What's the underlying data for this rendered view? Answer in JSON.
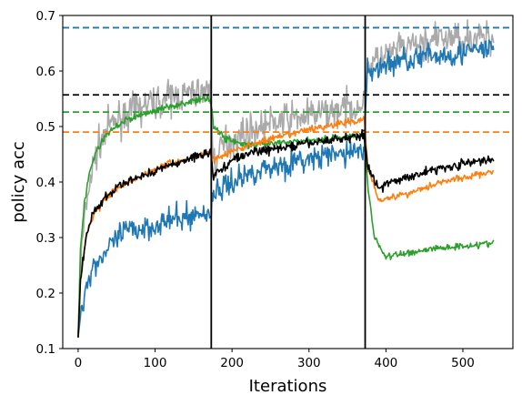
{
  "chart_data": {
    "type": "line",
    "title": "",
    "xlabel": "Iterations",
    "ylabel": "policy acc",
    "xlim": [
      -20,
      565
    ],
    "ylim": [
      0.1,
      0.7
    ],
    "xticks": [
      0,
      100,
      200,
      300,
      400,
      500
    ],
    "yticks": [
      0.1,
      0.2,
      0.3,
      0.4,
      0.5,
      0.6,
      0.7
    ],
    "xtick_labels": [
      "0",
      "100",
      "200",
      "300",
      "400",
      "500"
    ],
    "ytick_labels": [
      "0.1",
      "0.2",
      "0.3",
      "0.4",
      "0.5",
      "0.6",
      "0.7"
    ],
    "grid": false,
    "vertical_lines": [
      173,
      373
    ],
    "vertical_line_color": "#000000",
    "reference_lines": [
      {
        "y": 0.678,
        "color": "#1f77b4"
      },
      {
        "y": 0.557,
        "color": "#000000"
      },
      {
        "y": 0.526,
        "color": "#2ca02c"
      },
      {
        "y": 0.49,
        "color": "#ff7f0e"
      }
    ],
    "series": [
      {
        "color": "#aaaaaa",
        "noise": 0.028,
        "points": [
          [
            0,
            0.12
          ],
          [
            3,
            0.25
          ],
          [
            8,
            0.33
          ],
          [
            15,
            0.4
          ],
          [
            25,
            0.46
          ],
          [
            40,
            0.5
          ],
          [
            60,
            0.52
          ],
          [
            90,
            0.54
          ],
          [
            130,
            0.555
          ],
          [
            172,
            0.565
          ],
          [
            176,
            0.43
          ],
          [
            190,
            0.47
          ],
          [
            220,
            0.49
          ],
          [
            260,
            0.51
          ],
          [
            300,
            0.52
          ],
          [
            340,
            0.53
          ],
          [
            372,
            0.54
          ],
          [
            376,
            0.61
          ],
          [
            420,
            0.64
          ],
          [
            480,
            0.66
          ],
          [
            540,
            0.66
          ]
        ]
      },
      {
        "color": "#1f77b4",
        "noise": 0.022,
        "points": [
          [
            0,
            0.12
          ],
          [
            4,
            0.17
          ],
          [
            10,
            0.21
          ],
          [
            20,
            0.25
          ],
          [
            40,
            0.28
          ],
          [
            60,
            0.31
          ],
          [
            90,
            0.32
          ],
          [
            120,
            0.33
          ],
          [
            150,
            0.34
          ],
          [
            172,
            0.345
          ],
          [
            176,
            0.38
          ],
          [
            200,
            0.4
          ],
          [
            230,
            0.42
          ],
          [
            260,
            0.43
          ],
          [
            300,
            0.44
          ],
          [
            340,
            0.45
          ],
          [
            372,
            0.46
          ],
          [
            376,
            0.6
          ],
          [
            420,
            0.62
          ],
          [
            480,
            0.63
          ],
          [
            540,
            0.64
          ]
        ]
      },
      {
        "color": "#2ca02c",
        "noise": 0.006,
        "points": [
          [
            0,
            0.12
          ],
          [
            3,
            0.28
          ],
          [
            8,
            0.36
          ],
          [
            15,
            0.42
          ],
          [
            25,
            0.46
          ],
          [
            40,
            0.49
          ],
          [
            60,
            0.51
          ],
          [
            90,
            0.525
          ],
          [
            130,
            0.54
          ],
          [
            172,
            0.552
          ],
          [
            176,
            0.5
          ],
          [
            190,
            0.48
          ],
          [
            220,
            0.465
          ],
          [
            260,
            0.47
          ],
          [
            300,
            0.475
          ],
          [
            340,
            0.48
          ],
          [
            372,
            0.485
          ],
          [
            376,
            0.4
          ],
          [
            385,
            0.3
          ],
          [
            400,
            0.265
          ],
          [
            420,
            0.27
          ],
          [
            460,
            0.28
          ],
          [
            500,
            0.285
          ],
          [
            540,
            0.29
          ]
        ]
      },
      {
        "color": "#ff7f0e",
        "noise": 0.006,
        "points": [
          [
            0,
            0.12
          ],
          [
            3,
            0.22
          ],
          [
            10,
            0.3
          ],
          [
            20,
            0.34
          ],
          [
            35,
            0.37
          ],
          [
            50,
            0.39
          ],
          [
            80,
            0.41
          ],
          [
            110,
            0.43
          ],
          [
            140,
            0.44
          ],
          [
            172,
            0.455
          ],
          [
            176,
            0.44
          ],
          [
            200,
            0.455
          ],
          [
            230,
            0.47
          ],
          [
            260,
            0.48
          ],
          [
            300,
            0.495
          ],
          [
            340,
            0.505
          ],
          [
            372,
            0.513
          ],
          [
            376,
            0.43
          ],
          [
            390,
            0.37
          ],
          [
            400,
            0.37
          ],
          [
            430,
            0.38
          ],
          [
            470,
            0.4
          ],
          [
            510,
            0.41
          ],
          [
            540,
            0.42
          ]
        ]
      },
      {
        "color": "#000000",
        "noise": 0.008,
        "points": [
          [
            0,
            0.12
          ],
          [
            3,
            0.22
          ],
          [
            10,
            0.3
          ],
          [
            20,
            0.345
          ],
          [
            35,
            0.37
          ],
          [
            50,
            0.39
          ],
          [
            80,
            0.41
          ],
          [
            110,
            0.425
          ],
          [
            140,
            0.44
          ],
          [
            172,
            0.455
          ],
          [
            176,
            0.41
          ],
          [
            200,
            0.44
          ],
          [
            230,
            0.455
          ],
          [
            260,
            0.46
          ],
          [
            300,
            0.47
          ],
          [
            340,
            0.478
          ],
          [
            372,
            0.485
          ],
          [
            376,
            0.43
          ],
          [
            390,
            0.39
          ],
          [
            400,
            0.395
          ],
          [
            430,
            0.41
          ],
          [
            470,
            0.425
          ],
          [
            510,
            0.435
          ],
          [
            540,
            0.44
          ]
        ]
      }
    ]
  }
}
